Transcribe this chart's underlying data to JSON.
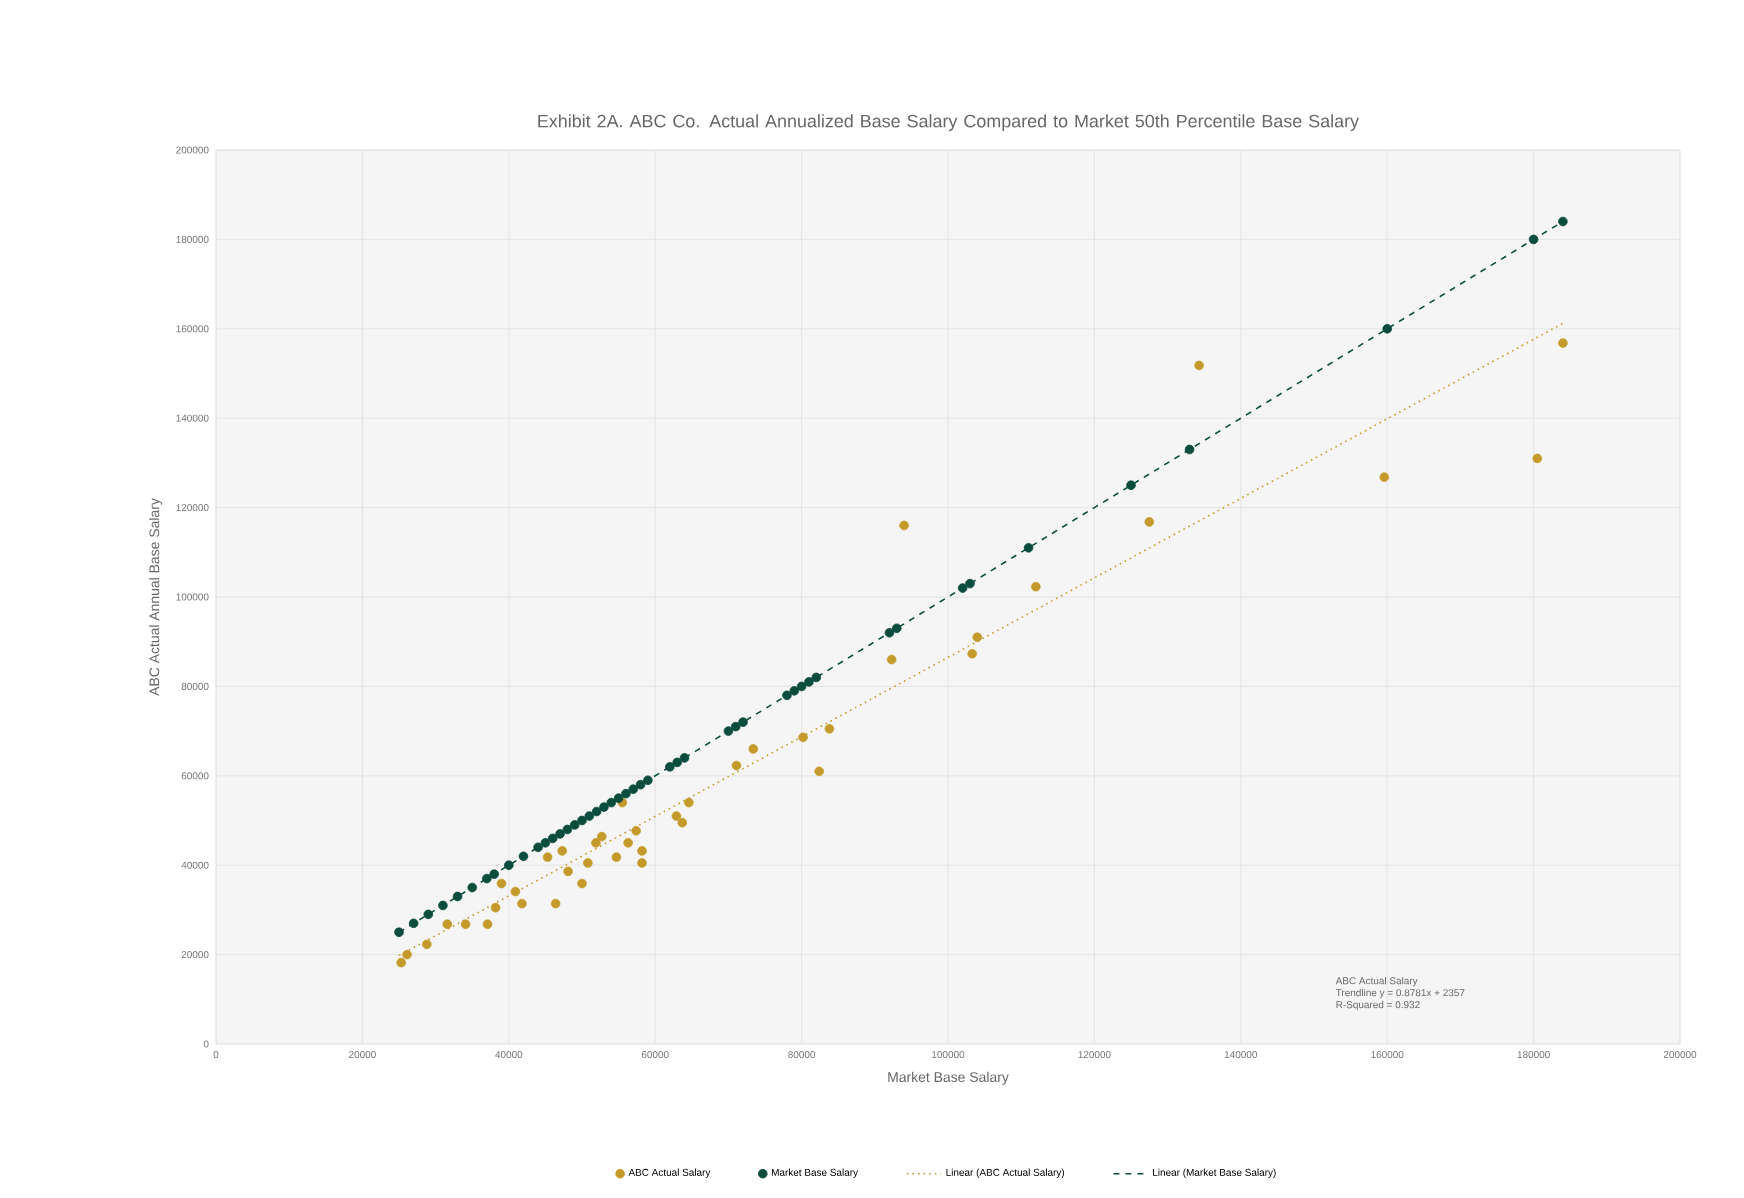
{
  "chart_data": {
    "type": "scatter",
    "title": "Exhibit 2A. ABC Co. Actual Annualized Base Salary Compared to Market 50th Percentile Base Salary",
    "xlabel": "Market Base Salary",
    "ylabel": "ABC Actual Annual Base Salary",
    "xlim": [
      0,
      200000
    ],
    "ylim": [
      0,
      200000
    ],
    "xticks": [
      0,
      20000,
      40000,
      60000,
      80000,
      100000,
      120000,
      140000,
      160000,
      180000,
      200000
    ],
    "yticks": [
      0,
      20000,
      40000,
      60000,
      80000,
      100000,
      120000,
      140000,
      160000,
      180000,
      200000
    ],
    "grid": true,
    "legend": "bottom",
    "marker": "circle",
    "annotations": [
      "ABC Actual Salary",
      "Trendline y = 0.8781x + 2357",
      "R-Squared = 0.932"
    ],
    "series": [
      {
        "name": "ABC Actual Salary",
        "color": "#c49a2a",
        "x": [
          25300,
          26100,
          28800,
          31600,
          34100,
          37100,
          38200,
          39000,
          40900,
          41800,
          45300,
          46400,
          47300,
          48100,
          50000,
          50800,
          51900,
          52700,
          54700,
          55500,
          56300,
          57400,
          58200,
          58200,
          62900,
          63700,
          64600,
          71100,
          73400,
          80200,
          82400,
          83800,
          92300,
          94000,
          103300,
          104000,
          112000,
          127500,
          134300,
          159600,
          180500,
          184000
        ],
        "values": [
          18200,
          20000,
          22300,
          26800,
          26800,
          26800,
          30500,
          35900,
          34100,
          31400,
          41800,
          31400,
          43200,
          38600,
          35900,
          40500,
          45000,
          46400,
          41800,
          54000,
          45000,
          47700,
          43200,
          40500,
          51000,
          49500,
          54000,
          62300,
          66000,
          68600,
          61000,
          70500,
          86000,
          116000,
          87300,
          91000,
          102300,
          116800,
          151800,
          126800,
          131000,
          156800
        ]
      },
      {
        "name": "Market Base Salary",
        "color": "#0b4d3c",
        "x": [
          25000,
          27000,
          29000,
          31000,
          33000,
          35000,
          37000,
          38000,
          40000,
          42000,
          44000,
          45000,
          46000,
          47000,
          48000,
          49000,
          50000,
          51000,
          52000,
          53000,
          54000,
          55000,
          56000,
          57000,
          58000,
          59000,
          62000,
          63000,
          64000,
          70000,
          71000,
          72000,
          78000,
          79000,
          80000,
          81000,
          82000,
          92000,
          93000,
          102000,
          103000,
          111000,
          125000,
          133000,
          160000,
          180000,
          184000
        ],
        "values": [
          25000,
          27000,
          29000,
          31000,
          33000,
          35000,
          37000,
          38000,
          40000,
          42000,
          44000,
          45000,
          46000,
          47000,
          48000,
          49000,
          50000,
          51000,
          52000,
          53000,
          54000,
          55000,
          56000,
          57000,
          58000,
          59000,
          62000,
          63000,
          64000,
          70000,
          71000,
          72000,
          78000,
          79000,
          80000,
          81000,
          82000,
          92000,
          93000,
          102000,
          103000,
          111000,
          125000,
          133000,
          160000,
          180000,
          184000
        ]
      },
      {
        "name": "Linear (ABC Actual Salary)",
        "type": "line",
        "line_style": "dotted",
        "marker": "none",
        "color": "#c49a2a",
        "x": [
          25000,
          184000
        ],
        "values": [
          19800,
          161200
        ]
      },
      {
        "name": "Linear (Market Base Salary)",
        "type": "line",
        "line_style": "dashed",
        "marker": "none",
        "color": "#0b4d3c",
        "x": [
          25000,
          184000
        ],
        "values": [
          25000,
          184000
        ]
      }
    ]
  }
}
